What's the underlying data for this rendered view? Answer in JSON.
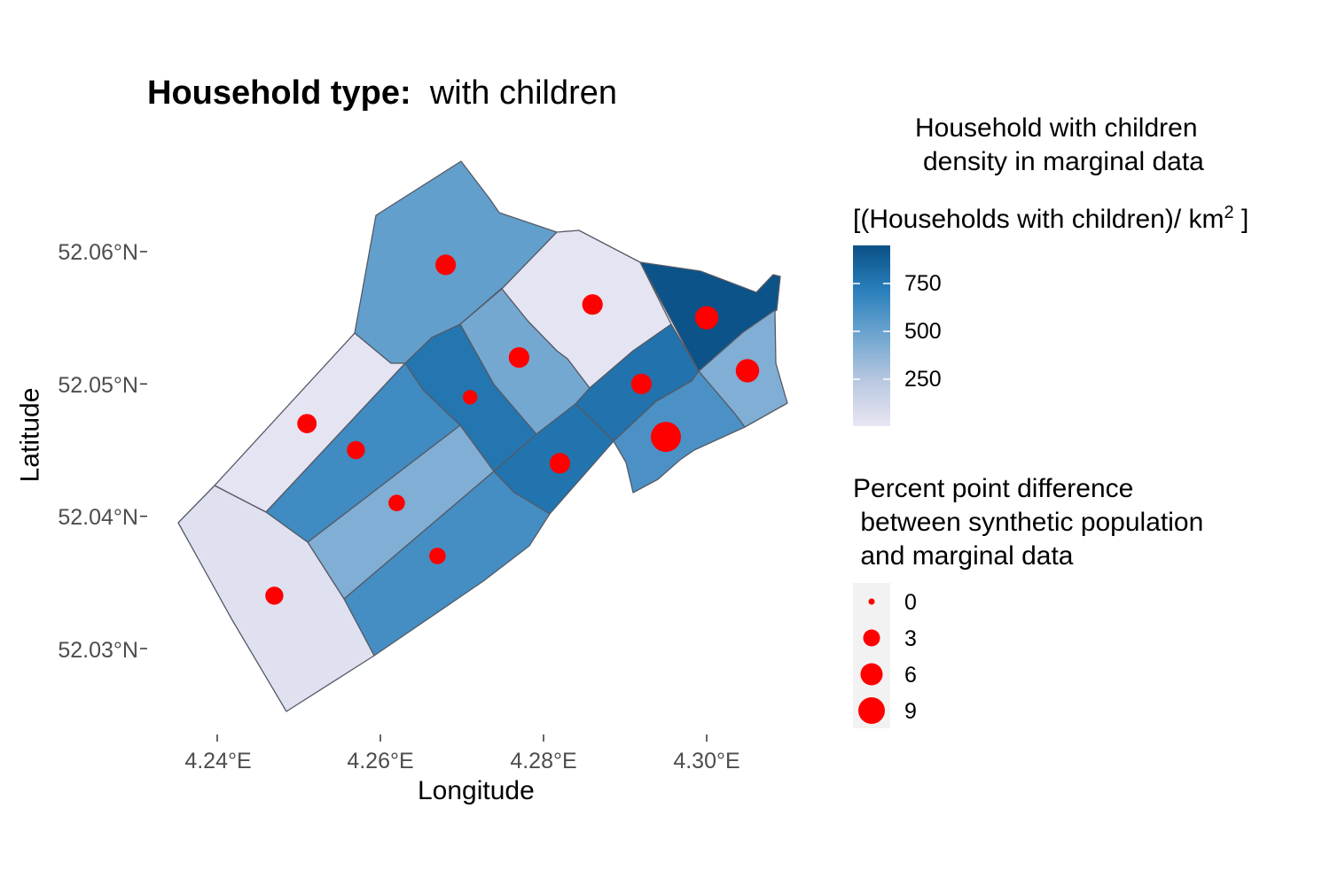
{
  "title": {
    "bold": "Household type:",
    "normal": "with children"
  },
  "axes": {
    "x_title": "Longitude",
    "y_title": "Latitude",
    "x_ticks": [
      "4.24°E",
      "4.26°E",
      "4.28°E",
      "4.30°E"
    ],
    "y_ticks": [
      "52.06°N",
      "52.05°N",
      "52.04°N",
      "52.03°N"
    ]
  },
  "legend_fill": {
    "title_line1": "Household with children",
    "title_line2": "density in marginal data",
    "title_line3": "[(Households with children)/ km",
    "title_sup": "2",
    "title_end": " ]",
    "labels": [
      "750",
      "500",
      "250"
    ],
    "colors": [
      "#e8e6f3",
      "#0a5186"
    ]
  },
  "legend_size": {
    "title_line1": "Percent point difference",
    "title_line2": " between synthetic population",
    "title_line3": " and marginal data",
    "labels": [
      "0",
      "3",
      "6",
      "9"
    ]
  },
  "chart_data": {
    "type": "choropleth_with_points",
    "x_axis": {
      "label": "Longitude",
      "ticks": [
        4.24,
        4.26,
        4.28,
        4.3
      ]
    },
    "y_axis": {
      "label": "Latitude",
      "ticks": [
        52.03,
        52.04,
        52.05,
        52.06
      ]
    },
    "fill_scale": {
      "breaks": [
        250,
        500,
        750
      ],
      "range": [
        0,
        950
      ]
    },
    "size_scale": {
      "breaks": [
        0,
        3,
        6,
        9
      ]
    },
    "point_color": "#ff0000",
    "districts": [
      {
        "id": "d1",
        "density": 520,
        "point": {
          "lon": 4.268,
          "lat": 52.059,
          "diff": 2.5
        }
      },
      {
        "id": "d2",
        "density": 20,
        "point": {
          "lon": 4.286,
          "lat": 52.056,
          "diff": 2.5
        }
      },
      {
        "id": "d3",
        "density": 940,
        "point": {
          "lon": 4.3,
          "lat": 52.055,
          "diff": 4
        }
      },
      {
        "id": "d4",
        "density": 460,
        "point": {
          "lon": 4.277,
          "lat": 52.052,
          "diff": 2.5
        }
      },
      {
        "id": "d5",
        "density": 420,
        "point": {
          "lon": 4.305,
          "lat": 52.051,
          "diff": 4
        }
      },
      {
        "id": "d6",
        "density": 780,
        "point": {
          "lon": 4.292,
          "lat": 52.05,
          "diff": 2.5
        }
      },
      {
        "id": "d7",
        "density": 760,
        "point": {
          "lon": 4.271,
          "lat": 52.049,
          "diff": 0.5
        }
      },
      {
        "id": "d8",
        "density": 15,
        "point": {
          "lon": 4.251,
          "lat": 52.047,
          "diff": 2
        }
      },
      {
        "id": "d9",
        "density": 640,
        "point": {
          "lon": 4.257,
          "lat": 52.045,
          "diff": 1.5
        }
      },
      {
        "id": "d10",
        "density": 600,
        "point": {
          "lon": 4.295,
          "lat": 52.046,
          "diff": 9
        }
      },
      {
        "id": "d11",
        "density": 770,
        "point": {
          "lon": 4.282,
          "lat": 52.044,
          "diff": 2.5
        }
      },
      {
        "id": "d12",
        "density": 420,
        "point": {
          "lon": 4.262,
          "lat": 52.041,
          "diff": 1
        }
      },
      {
        "id": "d13",
        "density": 620,
        "point": {
          "lon": 4.267,
          "lat": 52.037,
          "diff": 1
        }
      },
      {
        "id": "d14",
        "density": 40,
        "point": {
          "lon": 4.247,
          "lat": 52.034,
          "diff": 1.5
        }
      }
    ]
  }
}
